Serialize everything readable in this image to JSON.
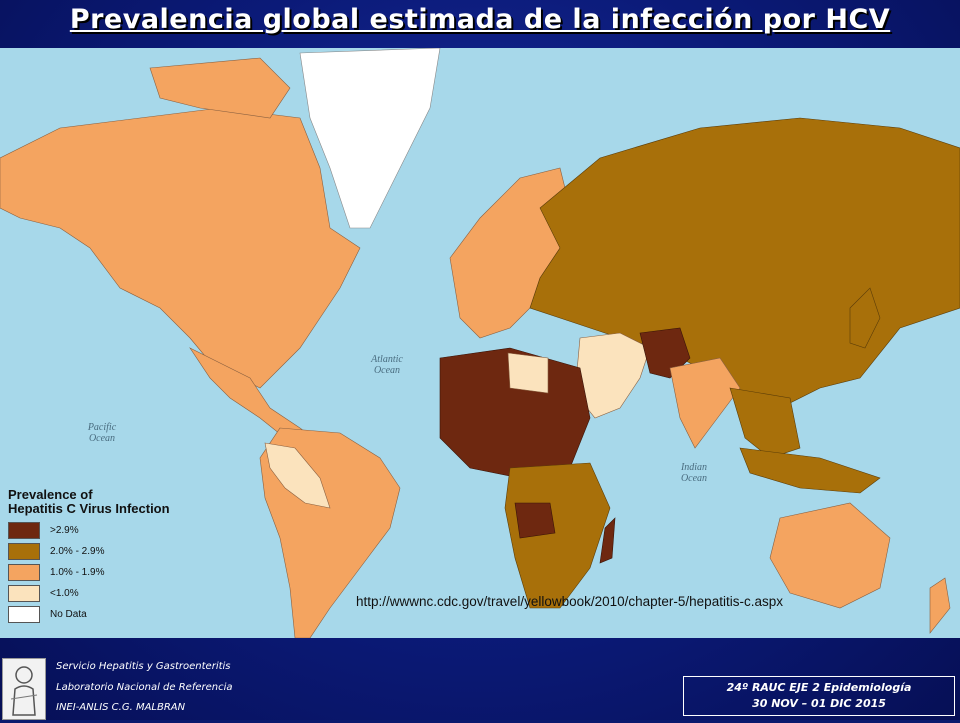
{
  "slide": {
    "title": "Prevalencia global estimada de la infección por HCV"
  },
  "map": {
    "source_url": "http://wwwnc.cdc.gov/travel/yellowbook/2010/chapter-5/hepatitis-c.aspx",
    "ocean_labels": {
      "atlantic": "Atlantic Ocean",
      "pacific": "Pacific Ocean",
      "indian": "Indian Ocean"
    },
    "legend": {
      "title_line1": "Prevalence of",
      "title_line2": "Hepatitis C Virus Infection",
      "items": [
        {
          "label": ">2.9%",
          "color": "#6e2810"
        },
        {
          "label": "2.0% - 2.9%",
          "color": "#a8700a"
        },
        {
          "label": "1.0% - 1.9%",
          "color": "#f4a460"
        },
        {
          "label": "<1.0%",
          "color": "#fbe3bd"
        },
        {
          "label": "No Data",
          "color": "#ffffff"
        }
      ]
    },
    "colors": {
      "ocean": "#a7d8ea",
      "high": "#6e2810",
      "mid": "#a8700a",
      "lowmid": "#f4a460",
      "low": "#fbe3bd",
      "nodata": "#ffffff"
    }
  },
  "footer": {
    "left_line1": "Servicio Hepatitis y Gastroenteritis",
    "left_line2": "Laboratorio Nacional de Referencia",
    "left_line3": "INEI-ANLIS C.G. MALBRAN",
    "right_line1": "24º RAUC  EJE 2  Epidemiología",
    "right_line2": "30 NOV – 01 DIC  2015"
  }
}
